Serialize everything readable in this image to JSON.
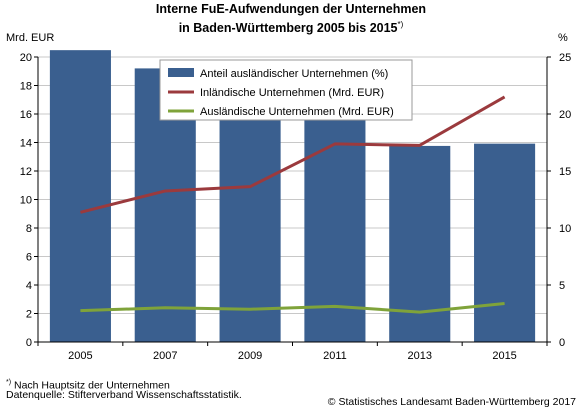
{
  "chart": {
    "title_line1": "Interne FuE-Aufwendungen der Unternehmen",
    "title_line2": "in Baden-Württemberg 2005 bis 2015",
    "title_marker": "*)",
    "ylabel_left": "Mrd. EUR",
    "ylabel_right": "%"
  },
  "footer": {
    "footnote_marker": "*)",
    "footnote": "Nach Hauptsitz der Unternehmen",
    "source": "Datenquelle: Stifterverband Wissenschaftsstatistik.",
    "copyright": "© Statistisches Landesamt Baden-Württemberg 2017"
  },
  "colors": {
    "bar": "#3a5f8f",
    "inland": "#9b3a3d",
    "ausland": "#7fa33a",
    "grid": "#c8c8c8"
  },
  "chart_data": {
    "type": "bar",
    "categories": [
      "2005",
      "2007",
      "2009",
      "2011",
      "2013",
      "2015"
    ],
    "series": [
      {
        "name": "Anteil ausländischer Unternehmen (%)",
        "type": "bar",
        "axis": "right",
        "values": [
          25.6,
          24.0,
          22.9,
          20.2,
          17.2,
          17.4
        ]
      },
      {
        "name": "Inländische Unternehmen (Mrd. EUR)",
        "type": "line",
        "axis": "left",
        "values": [
          9.1,
          10.6,
          10.9,
          13.9,
          13.8,
          17.2
        ]
      },
      {
        "name": "Ausländische Unternehmen (Mrd. EUR)",
        "type": "line",
        "axis": "left",
        "values": [
          2.2,
          2.4,
          2.3,
          2.5,
          2.1,
          2.7
        ]
      }
    ],
    "y_left": {
      "label": "Mrd. EUR",
      "ylim": [
        0,
        20
      ],
      "ticks": [
        0,
        2,
        4,
        6,
        8,
        10,
        12,
        14,
        16,
        18,
        20
      ]
    },
    "y_right": {
      "label": "%",
      "ylim": [
        0,
        25
      ],
      "ticks": [
        0,
        5,
        10,
        15,
        20,
        25
      ]
    },
    "grid": true,
    "legend_position": "top-center"
  }
}
